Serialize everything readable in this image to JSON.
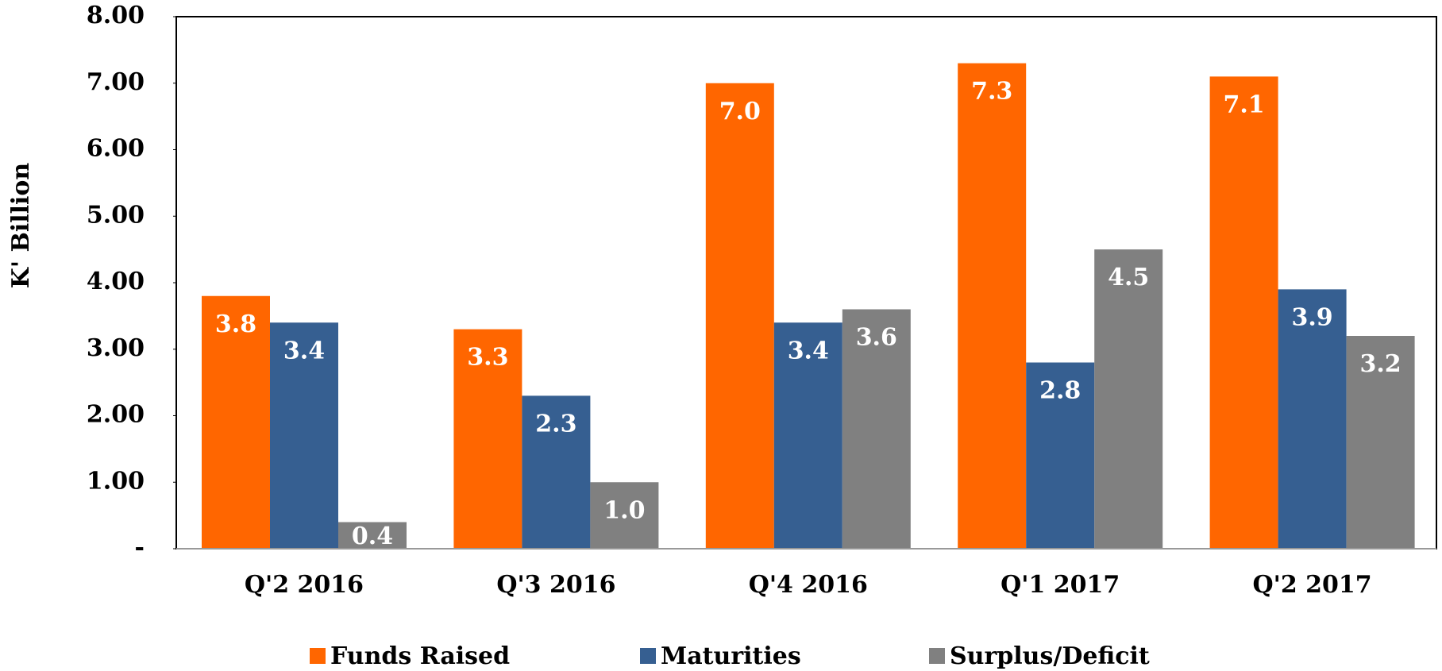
{
  "chart_data": {
    "type": "bar",
    "y_label": "K' Billion",
    "categories": [
      "Q'2 2016",
      "Q'3 2016",
      "Q'4 2016",
      "Q'1 2017",
      "Q'2 2017"
    ],
    "series": [
      {
        "name": "Funds Raised",
        "color": "#ff6600",
        "values": [
          3.8,
          3.3,
          7.0,
          7.3,
          7.1
        ],
        "value_labels": [
          "3.8",
          "3.3",
          "7.0",
          "7.3",
          "7.1"
        ]
      },
      {
        "name": "Maturities",
        "color": "#365f91",
        "values": [
          3.4,
          2.3,
          3.4,
          2.8,
          3.9
        ],
        "value_labels": [
          "3.4",
          "2.3",
          "3.4",
          "2.8",
          "3.9"
        ]
      },
      {
        "name": "Surplus/Deficit",
        "color": "#808080",
        "values": [
          0.4,
          1.0,
          3.6,
          4.5,
          3.2
        ],
        "value_labels": [
          "0.4",
          "1.0",
          "3.6",
          "4.5",
          "3.2"
        ]
      }
    ],
    "ylim": [
      0,
      8
    ],
    "yticks": [
      {
        "value": 0,
        "label": "-"
      },
      {
        "value": 1,
        "label": "1.00"
      },
      {
        "value": 2,
        "label": "2.00"
      },
      {
        "value": 3,
        "label": "3.00"
      },
      {
        "value": 4,
        "label": "4.00"
      },
      {
        "value": 5,
        "label": "5.00"
      },
      {
        "value": 6,
        "label": "6.00"
      },
      {
        "value": 7,
        "label": "7.00"
      },
      {
        "value": 8,
        "label": "8.00"
      }
    ],
    "legend": "bottom"
  }
}
